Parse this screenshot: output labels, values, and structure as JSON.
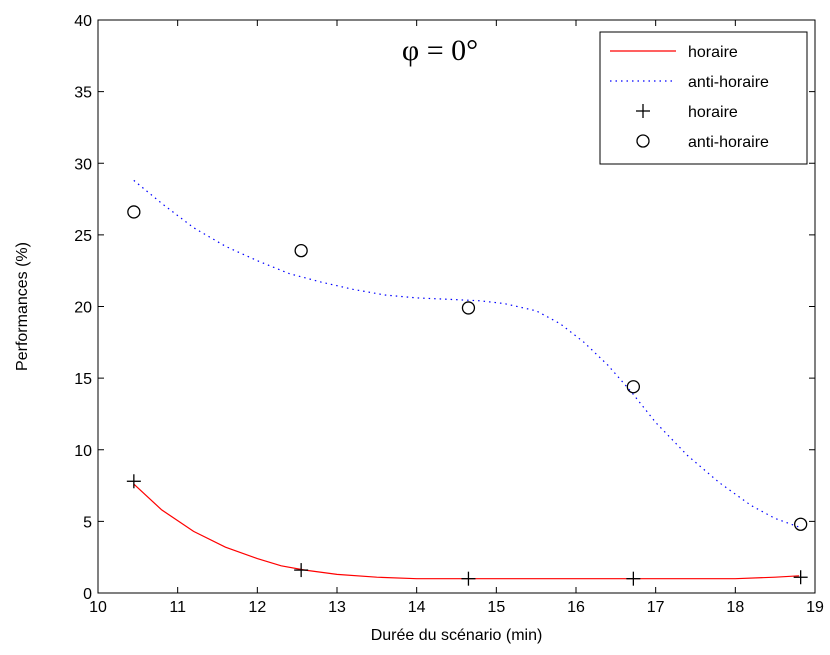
{
  "chart_data": {
    "type": "line",
    "title": "φ = 0°",
    "xlabel": "Durée du scénario (min)",
    "ylabel": "Performances (%)",
    "xlim": [
      10,
      19
    ],
    "ylim": [
      0,
      40
    ],
    "xticks": [
      10,
      11,
      12,
      13,
      14,
      15,
      16,
      17,
      18,
      19
    ],
    "yticks": [
      0,
      5,
      10,
      15,
      20,
      25,
      30,
      35,
      40
    ],
    "grid": false,
    "legend_position": "top-right",
    "series": [
      {
        "name": "horaire",
        "kind": "line",
        "style": "solid",
        "color": "#ff0000",
        "x": [
          10.45,
          10.8,
          11.2,
          11.6,
          12.0,
          12.3,
          12.6,
          13.0,
          13.5,
          14.0,
          14.6,
          15.2,
          15.8,
          16.4,
          16.9,
          17.5,
          18.0,
          18.5,
          18.8
        ],
        "y": [
          7.6,
          5.8,
          4.3,
          3.2,
          2.4,
          1.9,
          1.6,
          1.3,
          1.1,
          1.0,
          1.0,
          1.0,
          1.0,
          1.0,
          1.0,
          1.0,
          1.0,
          1.1,
          1.2
        ]
      },
      {
        "name": "anti-horaire",
        "kind": "line",
        "style": "dotted",
        "color": "#0000ff",
        "x": [
          10.45,
          10.8,
          11.2,
          11.6,
          12.0,
          12.4,
          12.8,
          13.2,
          13.6,
          14.0,
          14.4,
          14.8,
          15.1,
          15.5,
          15.8,
          16.1,
          16.4,
          16.7,
          17.0,
          17.4,
          17.8,
          18.2,
          18.5,
          18.8
        ],
        "y": [
          28.8,
          27.2,
          25.5,
          24.2,
          23.2,
          22.3,
          21.7,
          21.2,
          20.8,
          20.6,
          20.5,
          20.4,
          20.2,
          19.7,
          18.8,
          17.5,
          15.9,
          14.0,
          11.9,
          9.6,
          7.7,
          6.1,
          5.2,
          4.6
        ]
      },
      {
        "name": "horaire",
        "kind": "scatter",
        "marker": "plus",
        "color": "#000000",
        "x": [
          10.45,
          12.55,
          14.65,
          16.72,
          18.82
        ],
        "y": [
          7.8,
          1.6,
          1.0,
          1.0,
          1.1
        ]
      },
      {
        "name": "anti-horaire",
        "kind": "scatter",
        "marker": "circle",
        "color": "#000000",
        "x": [
          10.45,
          12.55,
          14.65,
          16.72,
          18.82
        ],
        "y": [
          26.6,
          23.9,
          19.9,
          14.4,
          4.8
        ]
      }
    ]
  }
}
